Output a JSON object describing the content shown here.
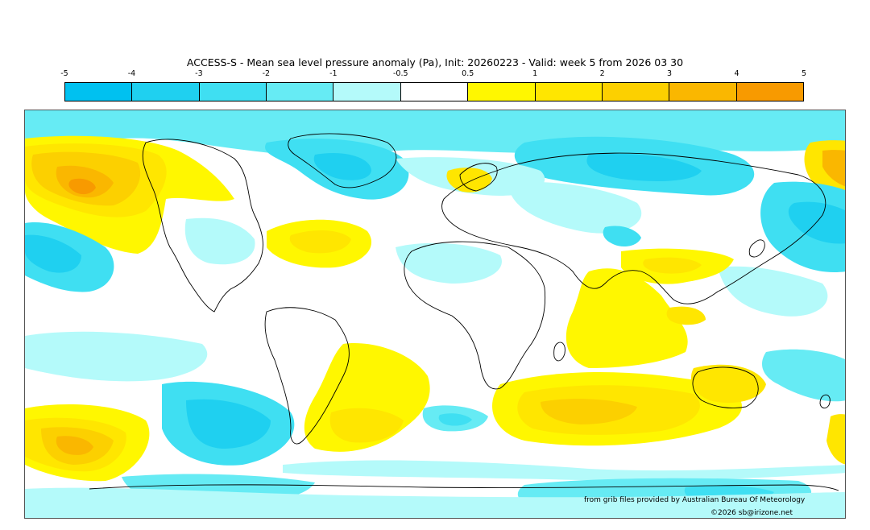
{
  "title": "ACCESS-S - Mean sea level pressure anomaly (Pa), Init: 20260223 - Valid: week 5 from 2026 03 30",
  "colorbar": {
    "ticks": [
      "-5",
      "-4",
      "-3",
      "-2",
      "-1",
      "-0.5",
      "0.5",
      "1",
      "2",
      "3",
      "4",
      "5"
    ],
    "colors": [
      "#00c1f0",
      "#1fd0f0",
      "#3fdff2",
      "#66ebf4",
      "#b4fafa",
      "#ffffff",
      "#fff700",
      "#ffe600",
      "#fcd000",
      "#fab700",
      "#f89a00"
    ]
  },
  "credits": {
    "source": "from grib files provided by Australian Bureau Of Meteorology",
    "copyright": "©2026 sb@irizone.net"
  }
}
